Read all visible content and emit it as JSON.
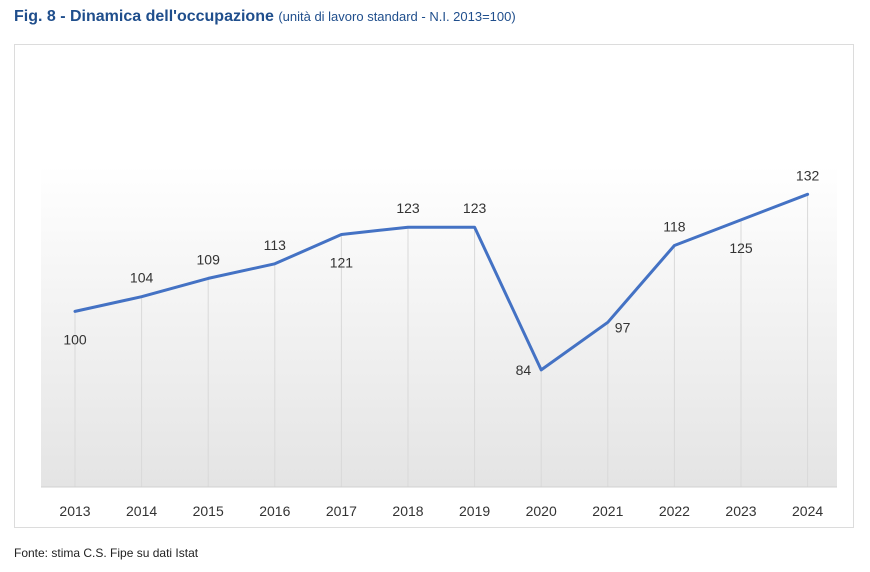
{
  "figure": {
    "title_main": "Fig. 8 - Dinamica dell'occupazione",
    "title_sub": "(unità di lavoro standard - N.I. 2013=100)",
    "source": "Fonte: stima C.S. Fipe su dati Istat"
  },
  "chart_data": {
    "type": "line",
    "title": "Fig. 8 - Dinamica dell'occupazione",
    "subtitle": "(unità di lavoro standard - N.I. 2013=100)",
    "categories": [
      "2013",
      "2014",
      "2015",
      "2016",
      "2017",
      "2018",
      "2019",
      "2020",
      "2021",
      "2022",
      "2023",
      "2024"
    ],
    "series": [
      {
        "values": [
          100,
          104,
          109,
          113,
          121,
          123,
          123,
          84,
          97,
          118,
          125,
          132
        ]
      }
    ],
    "data_labels": [
      "100",
      "104",
      "109",
      "113",
      "121",
      "123",
      "123",
      "84",
      "97",
      "118",
      "125",
      "132"
    ],
    "label_side": [
      "below",
      "above",
      "above",
      "above",
      "below",
      "above",
      "above",
      "left",
      "right",
      "above",
      "below",
      "above"
    ],
    "ylim": [
      52,
      140
    ],
    "grid": "vertical",
    "legend": "none",
    "colors": {
      "line": "#4472c4",
      "label": "#333333",
      "grid": "#d9d9d9",
      "title": "#1f4e8c"
    }
  }
}
